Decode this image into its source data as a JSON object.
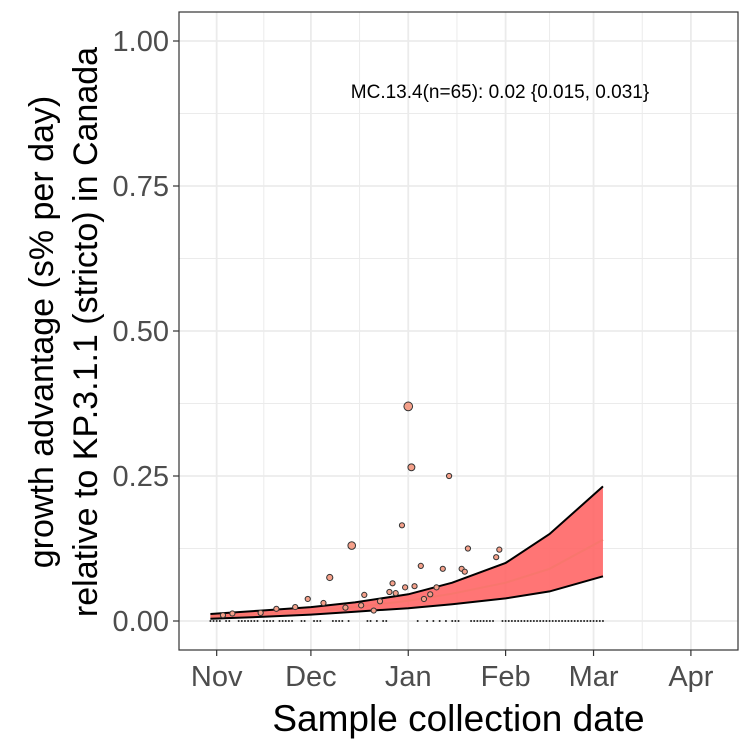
{
  "chart_data": {
    "type": "line",
    "xlabel": "Sample collection date",
    "ylabel_lines": [
      "growth advantage (s% per day)",
      "relative to KP.3.1.1 (stricto) in Canada"
    ],
    "annotation": "MC.13.4(n=65): 0.02 {0.015, 0.031}",
    "x_ticks": [
      {
        "label": "Nov",
        "date": "2024-11-01"
      },
      {
        "label": "Dec",
        "date": "2024-12-01"
      },
      {
        "label": "Jan",
        "date": "2025-01-01"
      },
      {
        "label": "Feb",
        "date": "2025-02-01"
      },
      {
        "label": "Mar",
        "date": "2025-03-01"
      },
      {
        "label": "Apr",
        "date": "2025-04-01"
      }
    ],
    "y_ticks": [
      "0.00",
      "0.25",
      "0.50",
      "0.75",
      "1.00"
    ],
    "xlim": [
      "2024-10-20",
      "2025-04-16"
    ],
    "ylim": [
      -0.05,
      1.05
    ],
    "grid": true,
    "colors": {
      "fit_line": "#f8766d",
      "ribbon_fill": "#ff6666",
      "ribbon_edge": "#000000",
      "points": "#f4a08a",
      "point_edge": "#333333",
      "grid": "#ebebeb",
      "panel_border": "#333333"
    },
    "fit": [
      {
        "date": "2024-10-30",
        "mid": 0.008,
        "lower": 0.004,
        "upper": 0.012
      },
      {
        "date": "2024-11-15",
        "mid": 0.012,
        "lower": 0.007,
        "upper": 0.018
      },
      {
        "date": "2024-12-01",
        "mid": 0.017,
        "lower": 0.011,
        "upper": 0.024
      },
      {
        "date": "2024-12-15",
        "mid": 0.024,
        "lower": 0.016,
        "upper": 0.032
      },
      {
        "date": "2025-01-01",
        "mid": 0.035,
        "lower": 0.022,
        "upper": 0.046
      },
      {
        "date": "2025-01-15",
        "mid": 0.047,
        "lower": 0.029,
        "upper": 0.066
      },
      {
        "date": "2025-02-01",
        "mid": 0.066,
        "lower": 0.039,
        "upper": 0.1
      },
      {
        "date": "2025-02-15",
        "mid": 0.09,
        "lower": 0.051,
        "upper": 0.15
      },
      {
        "date": "2025-03-04",
        "mid": 0.14,
        "lower": 0.077,
        "upper": 0.232
      }
    ],
    "points": [
      {
        "date": "2024-11-03",
        "y": 0.01,
        "n": 1
      },
      {
        "date": "2024-11-06",
        "y": 0.013,
        "n": 1
      },
      {
        "date": "2024-11-15",
        "y": 0.014,
        "n": 1
      },
      {
        "date": "2024-11-20",
        "y": 0.021,
        "n": 1
      },
      {
        "date": "2024-11-26",
        "y": 0.024,
        "n": 1
      },
      {
        "date": "2024-11-30",
        "y": 0.038,
        "n": 1
      },
      {
        "date": "2024-12-05",
        "y": 0.031,
        "n": 1
      },
      {
        "date": "2024-12-07",
        "y": 0.075,
        "n": 2
      },
      {
        "date": "2024-12-12",
        "y": 0.023,
        "n": 1
      },
      {
        "date": "2024-12-14",
        "y": 0.13,
        "n": 4
      },
      {
        "date": "2024-12-17",
        "y": 0.027,
        "n": 1
      },
      {
        "date": "2024-12-18",
        "y": 0.045,
        "n": 1
      },
      {
        "date": "2024-12-21",
        "y": 0.018,
        "n": 1
      },
      {
        "date": "2024-12-23",
        "y": 0.034,
        "n": 1
      },
      {
        "date": "2024-12-26",
        "y": 0.05,
        "n": 1
      },
      {
        "date": "2024-12-27",
        "y": 0.065,
        "n": 1
      },
      {
        "date": "2024-12-28",
        "y": 0.048,
        "n": 1
      },
      {
        "date": "2024-12-30",
        "y": 0.165,
        "n": 1
      },
      {
        "date": "2024-12-31",
        "y": 0.058,
        "n": 1
      },
      {
        "date": "2025-01-01",
        "y": 0.37,
        "n": 6
      },
      {
        "date": "2025-01-02",
        "y": 0.265,
        "n": 3
      },
      {
        "date": "2025-01-03",
        "y": 0.06,
        "n": 1
      },
      {
        "date": "2025-01-05",
        "y": 0.095,
        "n": 1
      },
      {
        "date": "2025-01-06",
        "y": 0.038,
        "n": 1
      },
      {
        "date": "2025-01-08",
        "y": 0.046,
        "n": 1
      },
      {
        "date": "2025-01-10",
        "y": 0.058,
        "n": 1
      },
      {
        "date": "2025-01-12",
        "y": 0.09,
        "n": 1
      },
      {
        "date": "2025-01-14",
        "y": 0.25,
        "n": 1
      },
      {
        "date": "2025-01-18",
        "y": 0.09,
        "n": 1
      },
      {
        "date": "2025-01-19",
        "y": 0.085,
        "n": 1
      },
      {
        "date": "2025-01-20",
        "y": 0.125,
        "n": 1
      },
      {
        "date": "2025-01-29",
        "y": 0.11,
        "n": 1
      },
      {
        "date": "2025-01-30",
        "y": 0.123,
        "n": 1
      }
    ],
    "zero_points": [
      "2024-10-30",
      "2024-10-31",
      "2024-11-01",
      "2024-11-02",
      "2024-11-04",
      "2024-11-05",
      "2024-11-08",
      "2024-11-09",
      "2024-11-10",
      "2024-11-11",
      "2024-11-12",
      "2024-11-13",
      "2024-11-14",
      "2024-11-16",
      "2024-11-17",
      "2024-11-18",
      "2024-11-19",
      "2024-11-21",
      "2024-11-22",
      "2024-11-23",
      "2024-11-24",
      "2024-11-25",
      "2024-11-28",
      "2024-11-29",
      "2024-12-02",
      "2024-12-03",
      "2024-12-04",
      "2024-12-08",
      "2024-12-09",
      "2024-12-10",
      "2024-12-11",
      "2024-12-13",
      "2024-12-19",
      "2024-12-20",
      "2024-12-22",
      "2024-12-24",
      "2024-12-25",
      "2025-01-04",
      "2025-01-07",
      "2025-01-09",
      "2025-01-11",
      "2025-01-13",
      "2025-01-15",
      "2025-01-16",
      "2025-01-17",
      "2025-01-21",
      "2025-01-22",
      "2025-01-23",
      "2025-01-24",
      "2025-01-25",
      "2025-01-26",
      "2025-01-27",
      "2025-01-28",
      "2025-01-31",
      "2025-02-01",
      "2025-02-02",
      "2025-02-03",
      "2025-02-04",
      "2025-02-05",
      "2025-02-06",
      "2025-02-07",
      "2025-02-08",
      "2025-02-09",
      "2025-02-10",
      "2025-02-11",
      "2025-02-12",
      "2025-02-13",
      "2025-02-14",
      "2025-02-15",
      "2025-02-16",
      "2025-02-17",
      "2025-02-18",
      "2025-02-19",
      "2025-02-20",
      "2025-02-21",
      "2025-02-22",
      "2025-02-23",
      "2025-02-24",
      "2025-02-25",
      "2025-02-26",
      "2025-02-27",
      "2025-02-28",
      "2025-03-01",
      "2025-03-02",
      "2025-03-03",
      "2025-03-04"
    ]
  }
}
